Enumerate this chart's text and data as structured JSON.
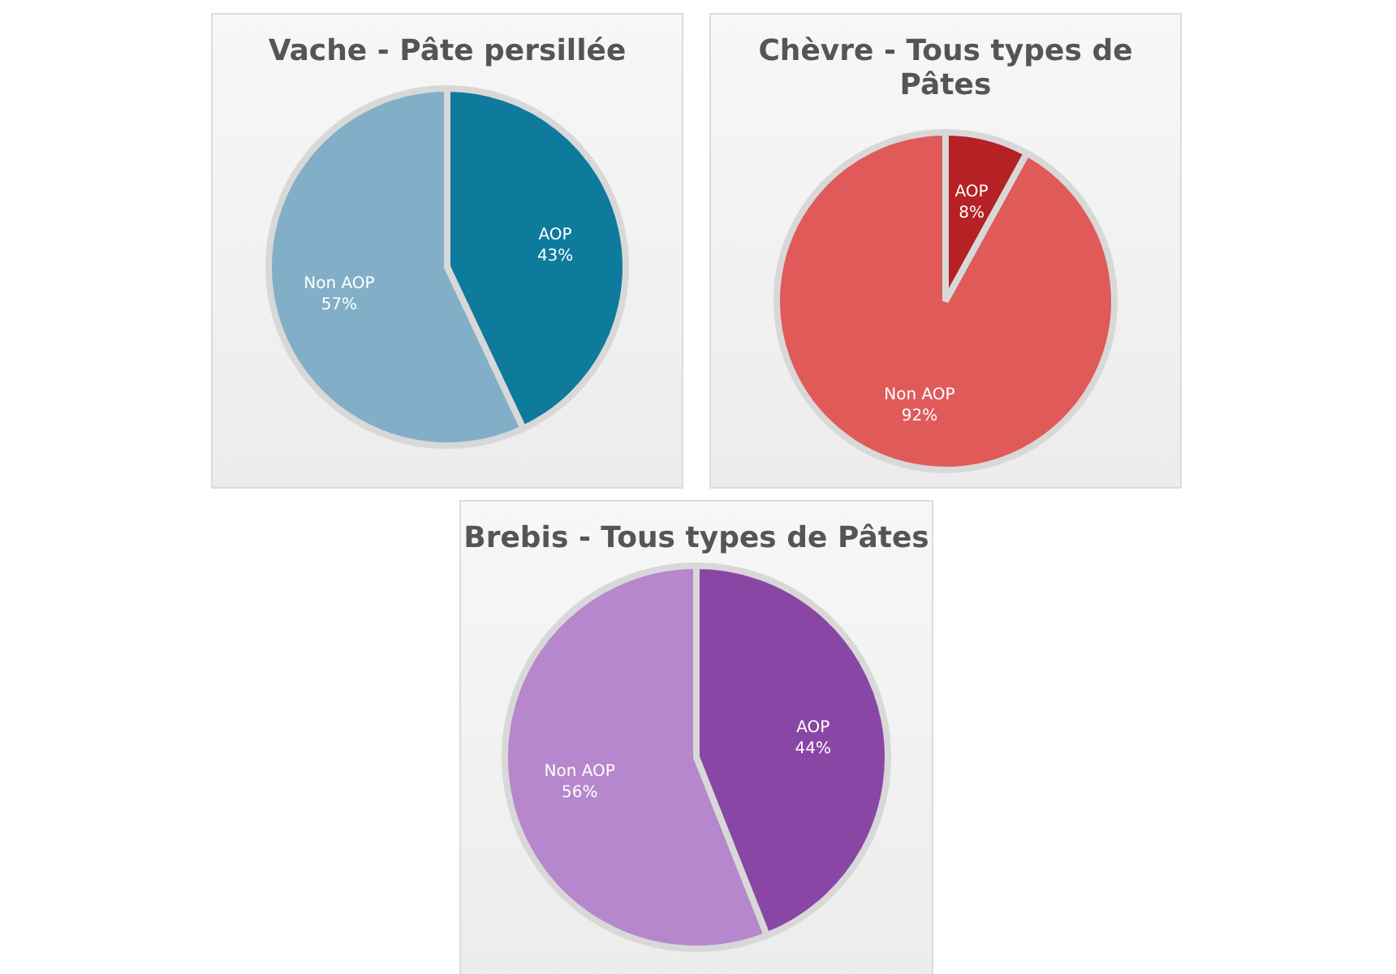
{
  "chart_data": [
    {
      "type": "pie",
      "title": "Vache - Pâte persillée",
      "categories": [
        "AOP",
        "Non AOP"
      ],
      "values": [
        43,
        57
      ],
      "value_labels": [
        "43%",
        "57%"
      ],
      "colors": [
        "#0e7a9c",
        "#82afc7"
      ]
    },
    {
      "type": "pie",
      "title": "Chèvre - Tous types de Pâtes",
      "categories": [
        "AOP",
        "Non AOP"
      ],
      "values": [
        8,
        92
      ],
      "value_labels": [
        "8%",
        "92%"
      ],
      "colors": [
        "#b52125",
        "#e05a5a"
      ]
    },
    {
      "type": "pie",
      "title": "Brebis  - Tous types de Pâtes",
      "categories": [
        "AOP",
        "Non AOP"
      ],
      "values": [
        44,
        56
      ],
      "value_labels": [
        "44%",
        "56%"
      ],
      "colors": [
        "#8a46a5",
        "#b687cc"
      ]
    }
  ]
}
